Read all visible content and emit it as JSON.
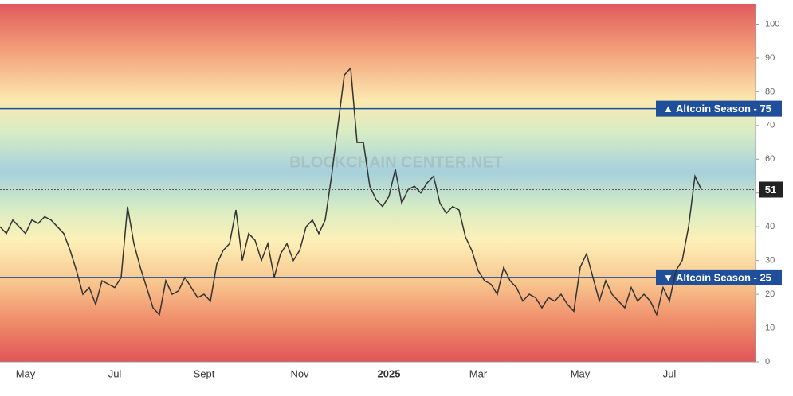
{
  "chart_data": {
    "type": "line",
    "watermark": "BLOCKCHAIN CENTER.NET",
    "categories": [
      null,
      null,
      null,
      null,
      "May",
      null,
      null,
      null,
      null,
      null,
      null,
      null,
      null,
      null,
      null,
      null,
      null,
      null,
      "Jul",
      null,
      null,
      null,
      null,
      null,
      null,
      null,
      null,
      null,
      null,
      null,
      null,
      null,
      "Sept",
      null,
      null,
      null,
      null,
      null,
      null,
      null,
      null,
      null,
      null,
      null,
      null,
      null,
      null,
      "Nov",
      null,
      null,
      null,
      null,
      null,
      null,
      null,
      null,
      null,
      null,
      null,
      null,
      null,
      "2025",
      null,
      null,
      null,
      null,
      null,
      null,
      null,
      null,
      null,
      null,
      null,
      null,
      null,
      "Mar",
      null,
      null,
      null,
      null,
      null,
      null,
      null,
      null,
      null,
      null,
      null,
      null,
      null,
      null,
      null,
      "May",
      null,
      null,
      null,
      null,
      null,
      null,
      null,
      null,
      null,
      null,
      null,
      null,
      null,
      "Jul",
      null,
      null,
      null,
      null,
      null
    ],
    "series": [
      {
        "color": "#333333",
        "values": [
          40,
          38,
          42,
          40,
          38,
          42,
          41,
          43,
          42,
          40,
          38,
          33,
          27,
          20,
          22,
          17,
          24,
          23,
          22,
          25,
          46,
          35,
          28,
          22,
          16,
          14,
          24,
          20,
          21,
          25,
          22,
          19,
          20,
          18,
          29,
          33,
          35,
          45,
          30,
          38,
          36,
          30,
          35,
          25,
          32,
          35,
          30,
          33,
          40,
          42,
          38,
          42,
          55,
          70,
          85,
          87,
          65,
          65,
          52,
          48,
          46,
          49,
          57,
          47,
          51,
          52,
          50,
          53,
          55,
          47,
          44,
          46,
          45,
          37,
          33,
          27,
          24,
          23,
          20,
          28,
          24,
          22,
          18,
          20,
          19,
          16,
          19,
          18,
          20,
          17,
          15,
          28,
          32,
          25,
          18,
          24,
          20,
          18,
          16,
          22,
          18,
          20,
          18,
          14,
          22,
          18,
          27,
          30,
          40,
          55,
          51
        ]
      }
    ],
    "ylim": [
      0,
      106
    ],
    "yticks": [
      0,
      10,
      20,
      30,
      40,
      50,
      60,
      70,
      80,
      90,
      100
    ],
    "hlines": [
      {
        "value": 75,
        "label": "▲ Altcoin Season - 75"
      },
      {
        "value": 25,
        "label": "▼ Altcoin Season - 25"
      }
    ],
    "line_color": "#1f4e9a"
  }
}
